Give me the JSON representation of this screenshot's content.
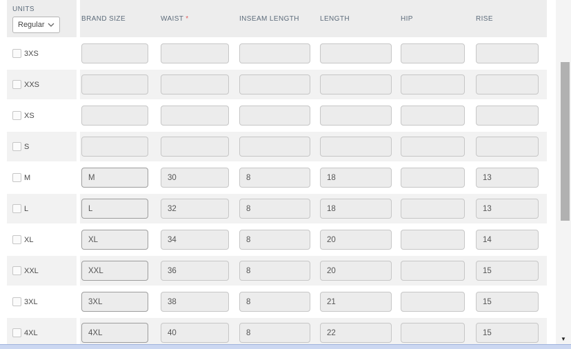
{
  "units": {
    "label": "UNITS",
    "value": "Regular"
  },
  "table": {
    "required_marker": "*",
    "columns": [
      {
        "key": "brand-size",
        "label": "BRAND SIZE",
        "required": false
      },
      {
        "key": "waist",
        "label": "WAIST",
        "required": true
      },
      {
        "key": "inseam-length",
        "label": "INSEAM LENGTH",
        "required": false
      },
      {
        "key": "length",
        "label": "LENGTH",
        "required": false
      },
      {
        "key": "hip",
        "label": "HIP",
        "required": false
      },
      {
        "key": "rise",
        "label": "RISE",
        "required": false
      }
    ],
    "rows": [
      {
        "size": "3XS",
        "checked": false,
        "values": [
          "",
          "",
          "",
          "",
          "",
          ""
        ]
      },
      {
        "size": "XXS",
        "checked": false,
        "values": [
          "",
          "",
          "",
          "",
          "",
          ""
        ]
      },
      {
        "size": "XS",
        "checked": false,
        "values": [
          "",
          "",
          "",
          "",
          "",
          ""
        ]
      },
      {
        "size": "S",
        "checked": false,
        "values": [
          "",
          "",
          "",
          "",
          "",
          ""
        ]
      },
      {
        "size": "M",
        "checked": false,
        "values": [
          "M",
          "30",
          "8",
          "18",
          "",
          "13"
        ]
      },
      {
        "size": "L",
        "checked": false,
        "values": [
          "L",
          "32",
          "8",
          "18",
          "",
          "13"
        ]
      },
      {
        "size": "XL",
        "checked": false,
        "values": [
          "XL",
          "34",
          "8",
          "20",
          "",
          "14"
        ]
      },
      {
        "size": "XXL",
        "checked": false,
        "values": [
          "XXL",
          "36",
          "8",
          "20",
          "",
          "15"
        ]
      },
      {
        "size": "3XL",
        "checked": false,
        "values": [
          "3XL",
          "38",
          "8",
          "21",
          "",
          "15"
        ]
      },
      {
        "size": "4XL",
        "checked": false,
        "values": [
          "4XL",
          "40",
          "8",
          "22",
          "",
          "15"
        ]
      }
    ]
  },
  "scrollbar": {
    "down_arrow": "▼"
  },
  "colors": {
    "header_bg": "#ededed",
    "header_text": "#5d6c7b",
    "required_red": "#e05c5c",
    "row_alt_bg": "#f2f2f2",
    "input_bg": "#ececec",
    "input_border": "#c6c6c6",
    "input_border_filled": "#9d9d9d",
    "scrollbar_thumb": "#b1b1b1",
    "hscrollbar_bg": "#cbd7f1",
    "hscrollbar_border": "#9fb3dd"
  }
}
